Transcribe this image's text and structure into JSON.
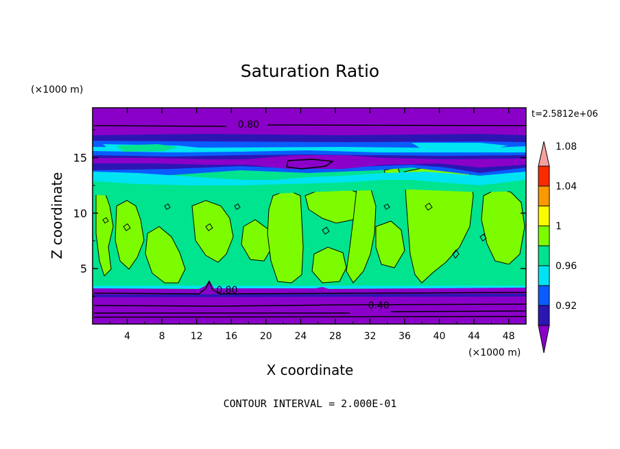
{
  "chart_data": {
    "type": "heatmap",
    "title": "Saturation Ratio",
    "xlabel": "X coordinate",
    "ylabel": "Z coordinate",
    "x_units": "(×1000 m)",
    "y_units": "(×1000 m)",
    "xlim": [
      0,
      50
    ],
    "ylim": [
      0,
      19.5
    ],
    "x_ticks": [
      "4",
      "8",
      "12",
      "16",
      "20",
      "24",
      "28",
      "32",
      "36",
      "40",
      "44",
      "48"
    ],
    "y_ticks": [
      "5",
      "10",
      "15"
    ],
    "time_label": "t=2.5812e+06",
    "footer": "CONTOUR INTERVAL = 2.000E-01",
    "contour_labels": [
      {
        "text": "0.80",
        "x": 18.0,
        "z": 18.0
      },
      {
        "text": "0.80",
        "x": 15.5,
        "z": 3.1
      },
      {
        "text": "0.40",
        "x": 33.0,
        "z": 1.7
      }
    ],
    "colorbar": {
      "levels": [
        "0.92",
        "0.96",
        "1",
        "1.04",
        "1.08"
      ],
      "colors": [
        "#8b00c9",
        "#2c16b3",
        "#0a5cff",
        "#00e3f2",
        "#00e38f",
        "#7dfc00",
        "#fbfb00",
        "#fb9900",
        "#fb2b00",
        "#f5a0a0"
      ]
    }
  }
}
